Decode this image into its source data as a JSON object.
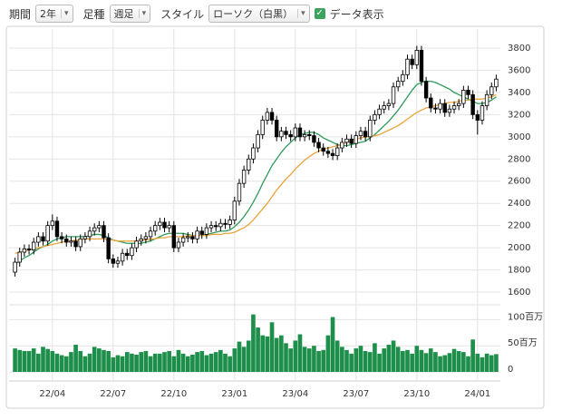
{
  "toolbar": {
    "period_label": "期間",
    "period_value": "2年",
    "type_label": "足種",
    "type_value": "週足",
    "style_label": "スタイル",
    "style_value": "ローソク（白黒）",
    "data_toggle": "データ表示"
  },
  "chart_data": {
    "type": "candlestick",
    "grid": true,
    "categories": [
      null,
      null,
      null,
      null,
      null,
      null,
      null,
      null,
      "22/04",
      null,
      null,
      null,
      null,
      null,
      null,
      null,
      null,
      null,
      null,
      null,
      null,
      "22/07",
      null,
      null,
      null,
      null,
      null,
      null,
      null,
      null,
      null,
      null,
      null,
      null,
      "22/10",
      null,
      null,
      null,
      null,
      null,
      null,
      null,
      null,
      null,
      null,
      null,
      null,
      "23/01",
      null,
      null,
      null,
      null,
      null,
      null,
      null,
      null,
      null,
      null,
      null,
      null,
      "23/04",
      null,
      null,
      null,
      null,
      null,
      null,
      null,
      null,
      null,
      null,
      null,
      null,
      "23/07",
      null,
      null,
      null,
      null,
      null,
      null,
      null,
      null,
      null,
      null,
      null,
      null,
      "23/10",
      null,
      null,
      null,
      null,
      null,
      null,
      null,
      null,
      null,
      null,
      null,
      null,
      "24/01",
      null,
      null,
      null,
      null
    ],
    "open": [
      1780,
      1870,
      1960,
      1990,
      1980,
      2050,
      2100,
      2060,
      2200,
      2240,
      2100,
      2080,
      2050,
      2060,
      2010,
      2080,
      2100,
      2150,
      2180,
      2200,
      2090,
      1900,
      1860,
      1880,
      1950,
      1930,
      2000,
      2060,
      2080,
      2100,
      2150,
      2200,
      2230,
      2180,
      2200,
      2000,
      2050,
      2090,
      2100,
      2080,
      2150,
      2120,
      2180,
      2200,
      2190,
      2220,
      2210,
      2250,
      2420,
      2580,
      2700,
      2800,
      2900,
      3020,
      3150,
      3220,
      3150,
      3000,
      3050,
      3020,
      3000,
      3080,
      3000,
      3020,
      3010,
      2950,
      2900,
      2870,
      2850,
      2830,
      2900,
      2950,
      2980,
      2940,
      3010,
      3050,
      3000,
      3150,
      3200,
      3250,
      3280,
      3300,
      3450,
      3500,
      3560,
      3700,
      3650,
      3780,
      3500,
      3350,
      3260,
      3250,
      3300,
      3220,
      3250,
      3280,
      3300,
      3420,
      3380,
      3200,
      3150,
      3280,
      3380,
      3450
    ],
    "high": [
      1910,
      2000,
      2030,
      2030,
      2090,
      2140,
      2140,
      2240,
      2300,
      2280,
      2140,
      2120,
      2100,
      2100,
      2120,
      2140,
      2190,
      2220,
      2240,
      2240,
      2130,
      1940,
      1920,
      1990,
      1990,
      2040,
      2100,
      2120,
      2140,
      2190,
      2240,
      2270,
      2270,
      2240,
      2240,
      2090,
      2130,
      2140,
      2140,
      2190,
      2190,
      2220,
      2240,
      2240,
      2260,
      2260,
      2290,
      2460,
      2620,
      2740,
      2840,
      2940,
      3060,
      3190,
      3260,
      3260,
      3190,
      3090,
      3090,
      3060,
      3120,
      3120,
      3060,
      3060,
      3050,
      2990,
      2940,
      2910,
      2890,
      2940,
      2990,
      3020,
      3020,
      3050,
      3090,
      3090,
      3190,
      3240,
      3290,
      3320,
      3340,
      3490,
      3540,
      3600,
      3740,
      3740,
      3820,
      3820,
      3540,
      3390,
      3300,
      3340,
      3340,
      3290,
      3320,
      3340,
      3460,
      3460,
      3420,
      3240,
      3320,
      3420,
      3490,
      3560
    ],
    "low": [
      1740,
      1830,
      1920,
      1940,
      1940,
      2010,
      2020,
      2020,
      2160,
      2060,
      2040,
      2010,
      2010,
      1970,
      1970,
      2040,
      2060,
      2110,
      2140,
      2050,
      1860,
      1820,
      1820,
      1840,
      1890,
      1890,
      1960,
      2020,
      2040,
      2060,
      2110,
      2160,
      2140,
      2140,
      1960,
      1960,
      2010,
      2050,
      2040,
      2040,
      2080,
      2080,
      2140,
      2150,
      2150,
      2170,
      2170,
      2210,
      2380,
      2540,
      2660,
      2760,
      2860,
      2980,
      3110,
      3110,
      2960,
      2960,
      2980,
      2960,
      2960,
      2960,
      2960,
      2970,
      2910,
      2860,
      2830,
      2810,
      2790,
      2790,
      2860,
      2910,
      2900,
      2900,
      2970,
      2960,
      2960,
      3110,
      3160,
      3210,
      3240,
      3260,
      3410,
      3460,
      3520,
      3610,
      3610,
      3460,
      3310,
      3220,
      3210,
      3210,
      3180,
      3180,
      3210,
      3240,
      3260,
      3340,
      3160,
      3020,
      3110,
      3240,
      3340,
      3410
    ],
    "close": [
      1870,
      1960,
      1990,
      1980,
      2050,
      2100,
      2060,
      2200,
      2240,
      2100,
      2080,
      2050,
      2060,
      2010,
      2080,
      2100,
      2150,
      2180,
      2200,
      2090,
      1900,
      1860,
      1880,
      1950,
      1930,
      2000,
      2060,
      2080,
      2100,
      2150,
      2200,
      2230,
      2180,
      2200,
      2000,
      2050,
      2090,
      2100,
      2080,
      2150,
      2120,
      2180,
      2200,
      2190,
      2220,
      2210,
      2250,
      2420,
      2580,
      2700,
      2800,
      2900,
      3020,
      3150,
      3220,
      3150,
      3000,
      3050,
      3020,
      3000,
      3080,
      3000,
      3020,
      3010,
      2950,
      2900,
      2870,
      2850,
      2830,
      2900,
      2950,
      2980,
      2940,
      3010,
      3050,
      3000,
      3150,
      3200,
      3250,
      3280,
      3300,
      3450,
      3500,
      3560,
      3700,
      3650,
      3780,
      3500,
      3350,
      3260,
      3250,
      3300,
      3220,
      3250,
      3280,
      3300,
      3420,
      3380,
      3200,
      3150,
      3280,
      3380,
      3450,
      3520
    ],
    "ma_lines": [
      {
        "color": "#2e9b5b",
        "values": [
          1850,
          1880,
          1910,
          1930,
          1960,
          1990,
          2010,
          2030,
          2060,
          2080,
          2090,
          2100,
          2100,
          2100,
          2100,
          2100,
          2110,
          2120,
          2120,
          2110,
          2090,
          2070,
          2060,
          2050,
          2040,
          2040,
          2040,
          2040,
          2050,
          2060,
          2080,
          2100,
          2120,
          2130,
          2130,
          2130,
          2130,
          2120,
          2110,
          2110,
          2110,
          2120,
          2130,
          2140,
          2150,
          2150,
          2160,
          2190,
          2230,
          2280,
          2340,
          2410,
          2490,
          2580,
          2660,
          2740,
          2800,
          2860,
          2910,
          2950,
          2990,
          3020,
          3030,
          3040,
          3040,
          3020,
          2990,
          2970,
          2950,
          2930,
          2920,
          2920,
          2930,
          2940,
          2950,
          2960,
          2990,
          3020,
          3060,
          3100,
          3140,
          3190,
          3240,
          3300,
          3360,
          3420,
          3470,
          3490,
          3500,
          3500,
          3490,
          3470,
          3450,
          3430,
          3400,
          3380,
          3360,
          3340,
          3320,
          3300,
          3300,
          3310,
          3330,
          3360
        ]
      },
      {
        "color": "#e8a33a",
        "values": [
          1950,
          1960,
          1970,
          1980,
          1990,
          2000,
          2010,
          2020,
          2030,
          2040,
          2050,
          2060,
          2060,
          2070,
          2070,
          2080,
          2080,
          2080,
          2080,
          2080,
          2070,
          2070,
          2060,
          2060,
          2060,
          2060,
          2060,
          2070,
          2070,
          2080,
          2080,
          2090,
          2090,
          2100,
          2100,
          2100,
          2100,
          2110,
          2110,
          2110,
          2110,
          2110,
          2120,
          2120,
          2120,
          2130,
          2130,
          2140,
          2160,
          2180,
          2210,
          2250,
          2300,
          2350,
          2400,
          2460,
          2520,
          2570,
          2620,
          2660,
          2710,
          2750,
          2790,
          2820,
          2850,
          2870,
          2890,
          2900,
          2910,
          2920,
          2930,
          2950,
          2970,
          2980,
          2990,
          3000,
          3000,
          3010,
          3020,
          3040,
          3060,
          3080,
          3100,
          3130,
          3160,
          3190,
          3220,
          3240,
          3260,
          3270,
          3280,
          3290,
          3300,
          3310,
          3310,
          3320,
          3330,
          3330,
          3340,
          3340,
          3340,
          3350,
          3360,
          3380
        ]
      }
    ],
    "volume": [
      45,
      42,
      40,
      40,
      45,
      35,
      48,
      44,
      40,
      35,
      32,
      30,
      38,
      52,
      40,
      30,
      35,
      48,
      45,
      42,
      40,
      28,
      32,
      30,
      38,
      35,
      33,
      38,
      40,
      30,
      35,
      35,
      38,
      40,
      30,
      42,
      35,
      30,
      33,
      38,
      40,
      32,
      35,
      38,
      42,
      35,
      30,
      45,
      58,
      48,
      60,
      110,
      85,
      70,
      68,
      95,
      65,
      70,
      55,
      45,
      60,
      72,
      48,
      45,
      50,
      40,
      42,
      70,
      105,
      60,
      48,
      42,
      35,
      45,
      50,
      40,
      38,
      55,
      35,
      45,
      52,
      60,
      48,
      40,
      42,
      35,
      50,
      42,
      36,
      45,
      38,
      30,
      32,
      36,
      44,
      40,
      38,
      30,
      62,
      35,
      28,
      35,
      32,
      34
    ],
    "volume_color": "#1e8f4a",
    "ylim": [
      1535,
      3906
    ],
    "yticks": [
      1600,
      1800,
      2000,
      2200,
      2400,
      2600,
      2800,
      3000,
      3200,
      3400,
      3600,
      3800
    ],
    "vlim": [
      0,
      125
    ],
    "vticks": [
      0,
      {
        "value": 50,
        "label": "50百万"
      },
      {
        "value": 100,
        "label": "100百万"
      }
    ]
  }
}
